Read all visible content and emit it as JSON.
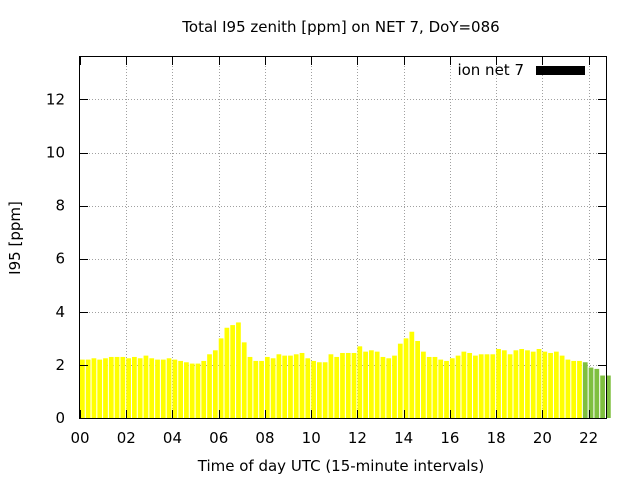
{
  "chart_data": {
    "type": "bar",
    "title": "Total I95 zenith [ppm] on NET 7, DoY=086",
    "xlabel": "Time of day UTC (15-minute intervals)",
    "ylabel": "I95 [ppm]",
    "xlim": [
      0,
      22.75
    ],
    "ylim": [
      0,
      13.6
    ],
    "xticks": [
      "00",
      "02",
      "04",
      "06",
      "08",
      "10",
      "12",
      "14",
      "16",
      "18",
      "20",
      "22"
    ],
    "yticks": [
      "0",
      "2",
      "4",
      "6",
      "8",
      "10",
      "12"
    ],
    "grid": true,
    "legend": {
      "position": "top-right",
      "entries": [
        {
          "label": "ion net 7",
          "color": "#000000"
        }
      ]
    },
    "bar_interval_hours": 0.25,
    "series": [
      {
        "name": "ion net 7",
        "start_hour": 0,
        "colors": {
          "default": "#ffff00",
          "late": "#7fbf3f"
        },
        "late_from_hour": 21.75,
        "values": [
          2.2,
          2.2,
          2.25,
          2.2,
          2.25,
          2.3,
          2.3,
          2.3,
          2.25,
          2.3,
          2.25,
          2.35,
          2.25,
          2.2,
          2.2,
          2.25,
          2.2,
          2.15,
          2.1,
          2.05,
          2.05,
          2.15,
          2.4,
          2.55,
          3.0,
          3.4,
          3.5,
          3.6,
          2.85,
          2.3,
          2.15,
          2.15,
          2.3,
          2.25,
          2.4,
          2.35,
          2.35,
          2.4,
          2.45,
          2.25,
          2.15,
          2.1,
          2.1,
          2.4,
          2.3,
          2.45,
          2.45,
          2.45,
          2.7,
          2.5,
          2.55,
          2.5,
          2.3,
          2.25,
          2.35,
          2.8,
          3.0,
          3.25,
          2.9,
          2.5,
          2.3,
          2.3,
          2.2,
          2.15,
          2.25,
          2.35,
          2.5,
          2.45,
          2.35,
          2.4,
          2.4,
          2.4,
          2.6,
          2.55,
          2.4,
          2.55,
          2.6,
          2.55,
          2.5,
          2.6,
          2.5,
          2.45,
          2.5,
          2.35,
          2.2,
          2.15,
          2.15,
          2.1,
          1.9,
          1.85,
          1.6,
          1.6
        ]
      }
    ]
  }
}
